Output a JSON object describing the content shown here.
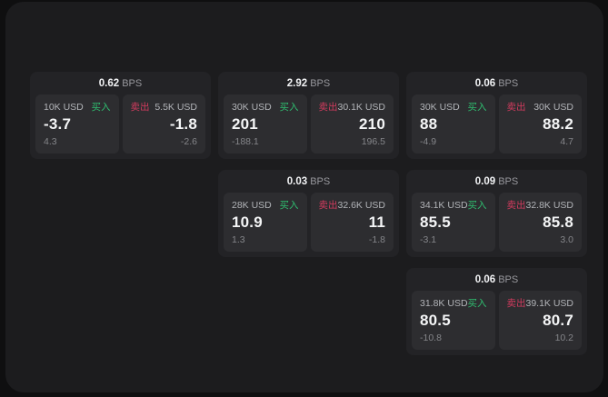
{
  "colors": {
    "background": "#0f0f10",
    "panel": "#1c1c1e",
    "card": "#232326",
    "tile": "#2d2d30",
    "buy_green": "#2fbe70",
    "sell_red": "#d13b5e",
    "value_white": "#f4f5f6",
    "muted_gray": "#85868a"
  },
  "bps_unit_label": "BPS",
  "buy_side_label": "买入",
  "sell_side_label": "卖出",
  "cards": [
    {
      "grid": {
        "row": 1,
        "col": 1
      },
      "bps_value": "0.62",
      "buy": {
        "amount": "10K USD",
        "value": "-3.7",
        "delta": "4.3"
      },
      "sell": {
        "amount": "5.5K USD",
        "value": "-1.8",
        "delta": "-2.6"
      }
    },
    {
      "grid": {
        "row": 1,
        "col": 2
      },
      "bps_value": "2.92",
      "buy": {
        "amount": "30K USD",
        "value": "201",
        "delta": "-188.1"
      },
      "sell": {
        "amount": "30.1K USD",
        "value": "210",
        "delta": "196.5"
      }
    },
    {
      "grid": {
        "row": 1,
        "col": 3
      },
      "bps_value": "0.06",
      "buy": {
        "amount": "30K USD",
        "value": "88",
        "delta": "-4.9"
      },
      "sell": {
        "amount": "30K USD",
        "value": "88.2",
        "delta": "4.7"
      }
    },
    {
      "grid": {
        "row": 2,
        "col": 2
      },
      "bps_value": "0.03",
      "buy": {
        "amount": "28K USD",
        "value": "10.9",
        "delta": "1.3"
      },
      "sell": {
        "amount": "32.6K USD",
        "value": "11",
        "delta": "-1.8"
      }
    },
    {
      "grid": {
        "row": 2,
        "col": 3
      },
      "bps_value": "0.09",
      "buy": {
        "amount": "34.1K USD",
        "value": "85.5",
        "delta": "-3.1"
      },
      "sell": {
        "amount": "32.8K USD",
        "value": "85.8",
        "delta": "3.0"
      }
    },
    {
      "grid": {
        "row": 3,
        "col": 3
      },
      "bps_value": "0.06",
      "buy": {
        "amount": "31.8K USD",
        "value": "80.5",
        "delta": "-10.8"
      },
      "sell": {
        "amount": "39.1K USD",
        "value": "80.7",
        "delta": "10.2"
      }
    }
  ]
}
